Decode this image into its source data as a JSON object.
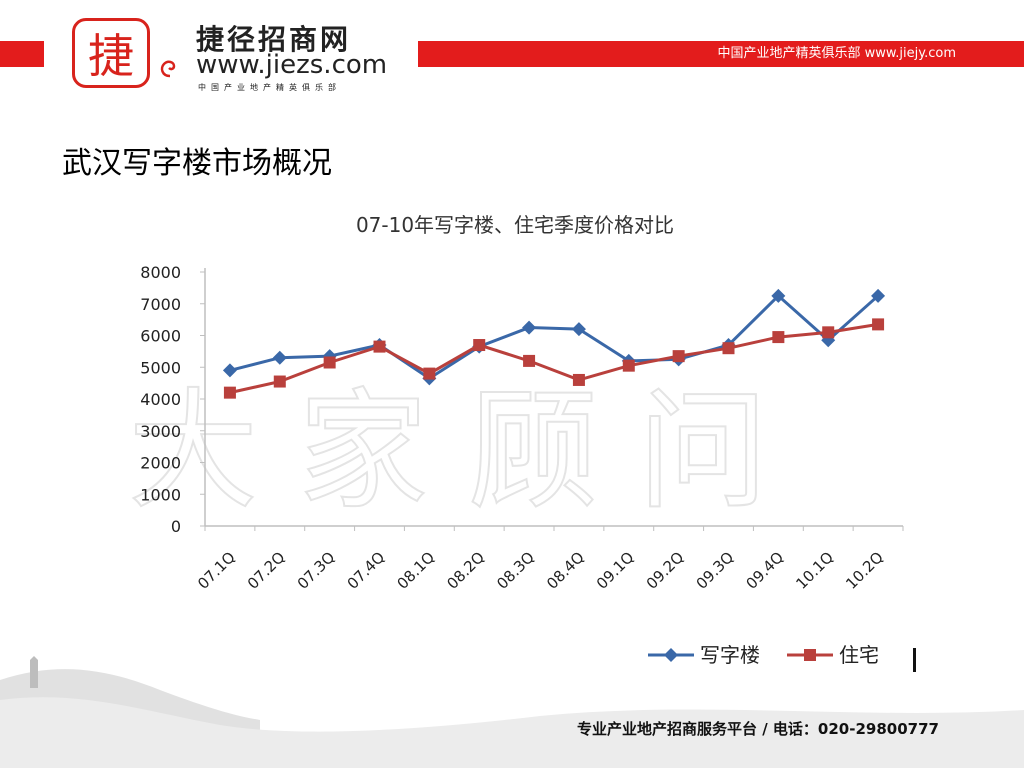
{
  "header": {
    "logo_char": "捷",
    "brand_name": "捷径招商网",
    "brand_url": "www.jiezs.com",
    "brand_sub": "中国产业地产精英俱乐部",
    "tagline": "中国产业地产精英俱乐部 www.jiejy.com",
    "accent_color": "#e31c1c"
  },
  "page_title": "武汉写字楼市场概况",
  "watermark": "大家顾问",
  "footer": "专业产业地产招商服务平台 / 电话：020-29800777",
  "chart_data": {
    "type": "line",
    "title": "07-10年写字楼、住宅季度价格对比",
    "xlabel": "",
    "ylabel": "",
    "ylim": [
      0,
      8000
    ],
    "yticks": [
      0,
      1000,
      2000,
      3000,
      4000,
      5000,
      6000,
      7000,
      8000
    ],
    "categories": [
      "07.1Q",
      "07.2Q",
      "07.3Q",
      "07.4Q",
      "08.1Q",
      "08.2Q",
      "08.3Q",
      "08.4Q",
      "09.1Q",
      "09.2Q",
      "09.3Q",
      "09.4Q",
      "10.1Q",
      "10.2Q"
    ],
    "series": [
      {
        "name": "写字楼",
        "color": "#3a68a8",
        "marker": "diamond",
        "values": [
          4900,
          5300,
          5350,
          5700,
          4650,
          5650,
          6250,
          6200,
          5200,
          5250,
          5700,
          7250,
          5850,
          7250
        ]
      },
      {
        "name": "住宅",
        "color": "#b9403c",
        "marker": "square",
        "values": [
          4200,
          4550,
          5150,
          5650,
          4800,
          5700,
          5200,
          4600,
          5050,
          5350,
          5600,
          5950,
          6100,
          6350
        ]
      }
    ],
    "legend_position": "bottom-right",
    "grid": false
  }
}
